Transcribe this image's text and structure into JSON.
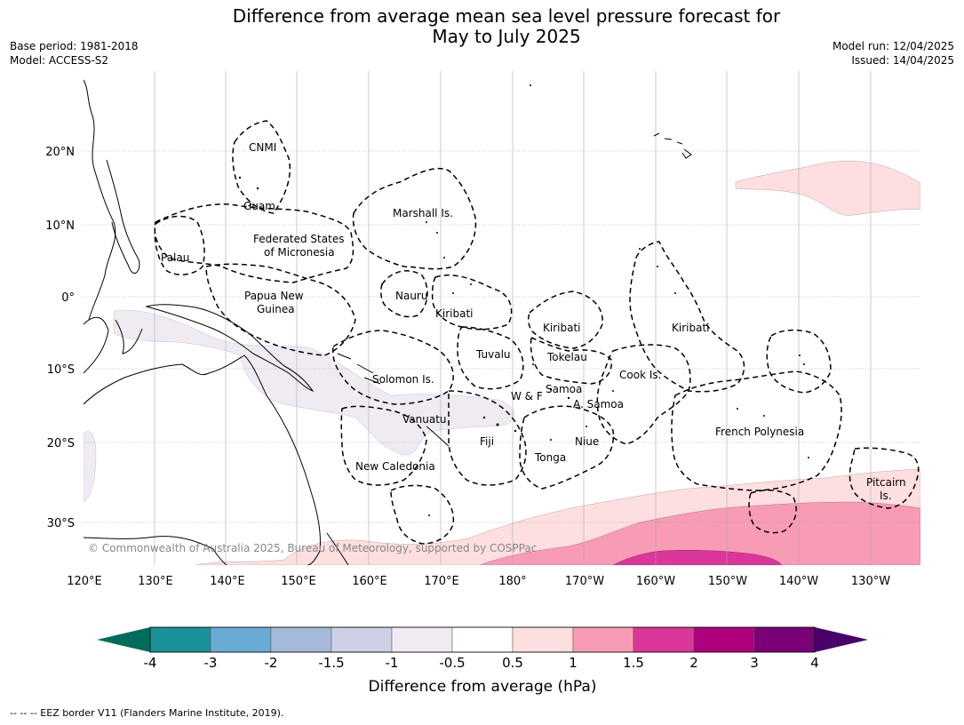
{
  "title_line1": "Difference from average mean sea level pressure forecast for",
  "title_line2": "May to July 2025",
  "meta_left": [
    "Base period: 1981-2018",
    "Model: ACCESS-S2"
  ],
  "meta_right": [
    "Model run: 12/04/2025",
    "Issued: 14/04/2025"
  ],
  "lat_labels": [
    "20°N",
    "10°N",
    "0°",
    "10°S",
    "20°S",
    "30°S"
  ],
  "lon_labels": [
    "120°E",
    "130°E",
    "140°E",
    "150°E",
    "160°E",
    "170°E",
    "180°",
    "170°W",
    "160°W",
    "150°W",
    "140°W",
    "130°W"
  ],
  "regions": [
    "CNMI",
    "Guam",
    "Marshall Is.",
    "Federated States",
    "of Micronesia",
    "Palau",
    "Papua New",
    "Guinea",
    "Nauru",
    "Kiribati",
    "Kiribati",
    "Kiribati",
    "Tuvalu",
    "Tokelau",
    "Cook Is.",
    "Solomon Is.",
    "W & F",
    "Samoa",
    "A. Samoa",
    "Vanuatu",
    "Fiji",
    "Niue",
    "Tonga",
    "French Polynesia",
    "New Caledonia",
    "Pitcairn",
    "Is."
  ],
  "copyright": "© Commonwealth of Australia 2025, Bureau of Meteorology, supported by COSPPac",
  "colorbar": {
    "ticks": [
      "-4",
      "-3",
      "-2",
      "-1.5",
      "-1",
      "-0.5",
      "0.5",
      "1",
      "1.5",
      "2",
      "3",
      "4"
    ],
    "colors": [
      "#1b9299",
      "#68abd5",
      "#a5b9da",
      "#cdd0e6",
      "#f0ebf2",
      "#ffffff",
      "#fddfe0",
      "#f89cb6",
      "#db369a",
      "#b0007e",
      "#7a0177"
    ],
    "under_color": "#016c59",
    "over_color": "#49006a",
    "label": "Difference from average (hPa)"
  },
  "footnote": "--  --  -- EEZ border V11 (Flanders Marine Institute, 2019)."
}
